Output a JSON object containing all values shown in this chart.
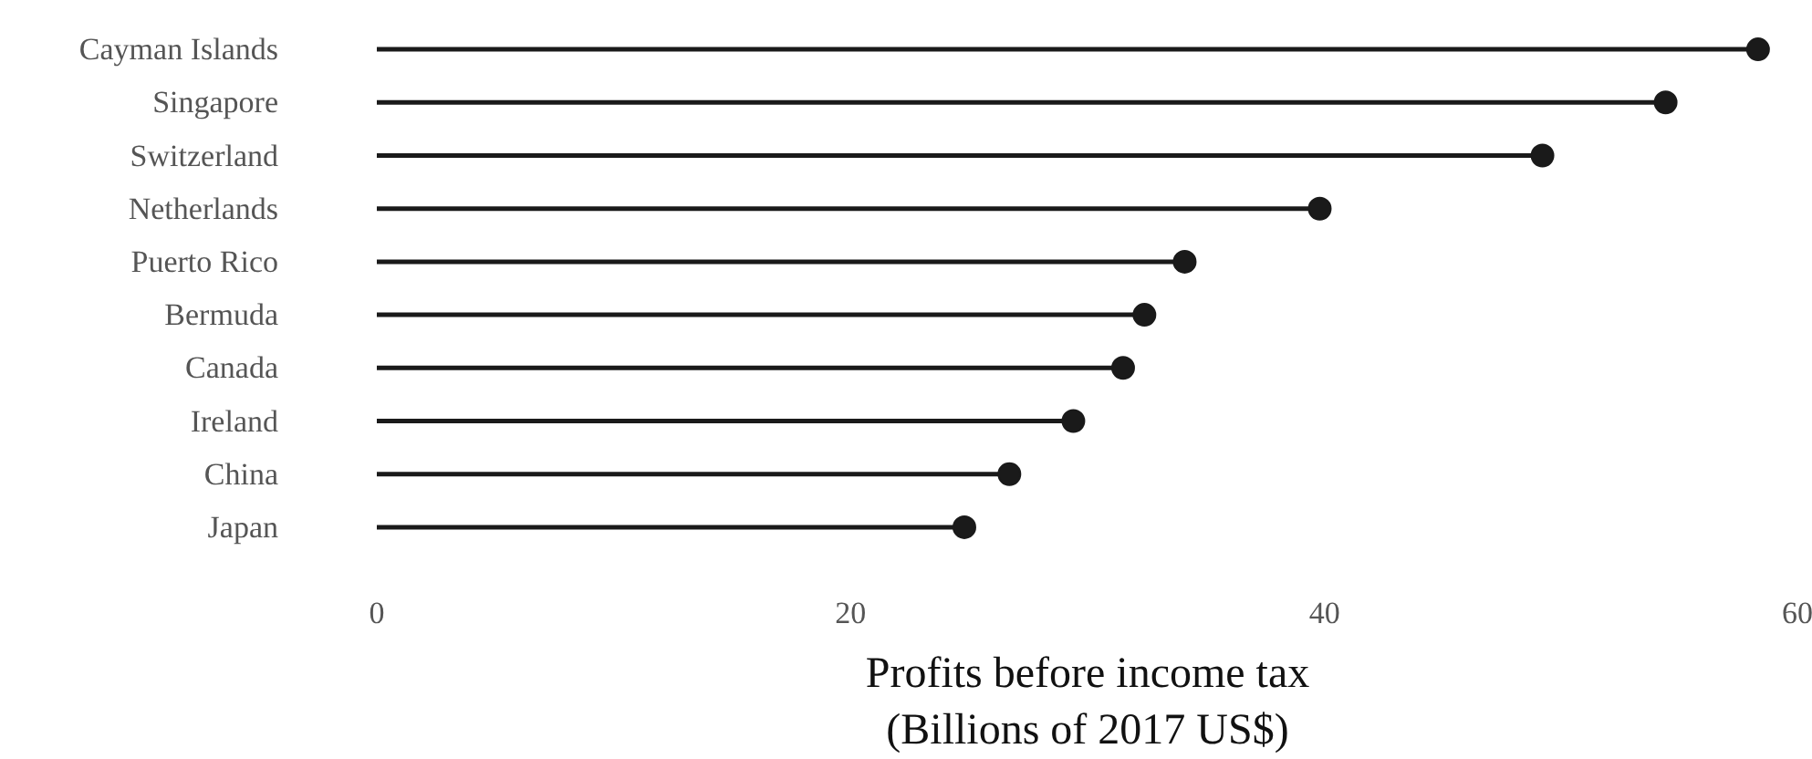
{
  "chart_data": {
    "type": "lollipop",
    "orientation": "horizontal",
    "xlabel": "Profits before income tax\n(Billions of 2017 US$)",
    "categories": [
      "Cayman Islands",
      "Singapore",
      "Switzerland",
      "Netherlands",
      "Puerto Rico",
      "Bermuda",
      "Canada",
      "Ireland",
      "China",
      "Japan"
    ],
    "values": [
      58.3,
      54.4,
      49.2,
      39.8,
      34.1,
      32.4,
      31.5,
      29.4,
      26.7,
      24.8
    ],
    "color": "#1a1a1a",
    "marker": "circle",
    "xlim": [
      0,
      60
    ],
    "xticks": [
      0,
      20,
      40,
      60
    ],
    "grid": false
  }
}
